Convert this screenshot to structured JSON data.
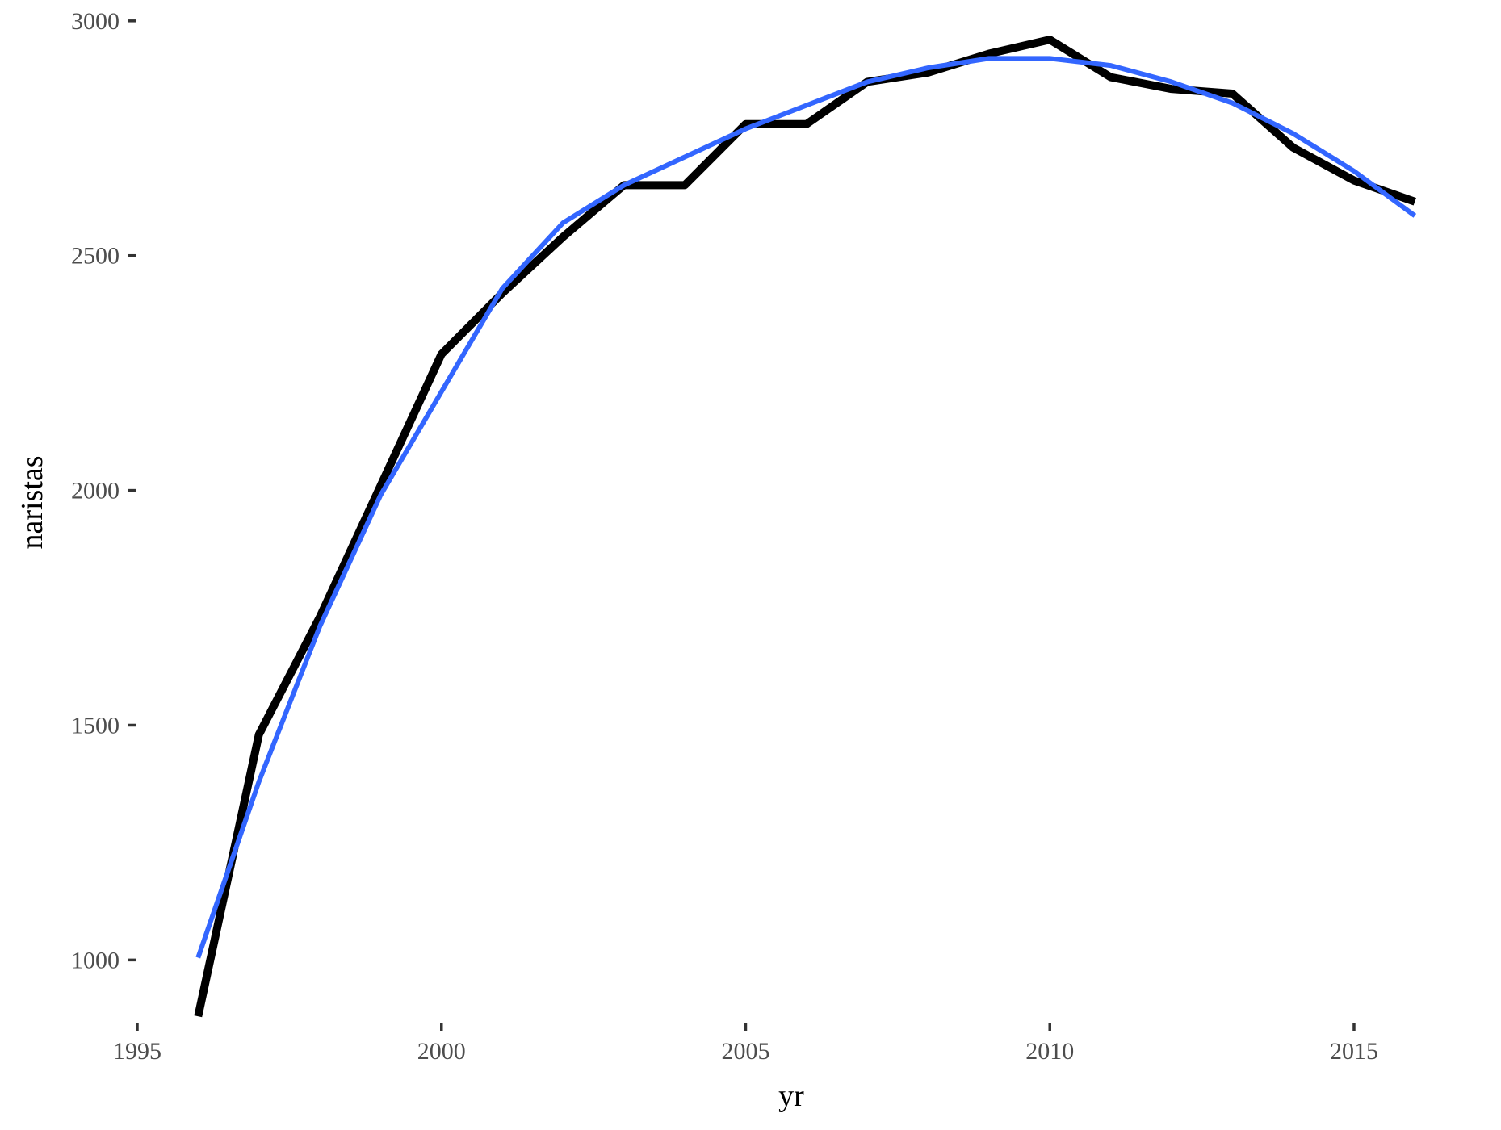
{
  "chart_data": {
    "type": "line",
    "title": "",
    "xlabel": "yr",
    "ylabel": "naristas",
    "xlim": [
      1995,
      2016.5
    ],
    "ylim": [
      870,
      3010
    ],
    "x_ticks": [
      1995,
      2000,
      2005,
      2010,
      2015
    ],
    "x_tick_labels": [
      "1995",
      "2000",
      "2005",
      "2010",
      "2015"
    ],
    "y_ticks": [
      1000,
      1500,
      2000,
      2500,
      3000
    ],
    "y_tick_labels": [
      "1000",
      "1500",
      "2000",
      "2500",
      "3000"
    ],
    "grid": false,
    "legend": "none",
    "series": [
      {
        "style": "observed",
        "color": "#000000",
        "x": [
          1996,
          1997,
          1998,
          1999,
          2000,
          2001,
          2002,
          2003,
          2004,
          2005,
          2006,
          2007,
          2008,
          2009,
          2010,
          2011,
          2012,
          2013,
          2014,
          2015,
          2016
        ],
        "y": [
          880,
          1480,
          1730,
          2010,
          2290,
          2420,
          2540,
          2650,
          2650,
          2780,
          2780,
          2870,
          2890,
          2930,
          2960,
          2880,
          2855,
          2845,
          2730,
          2660,
          2615
        ]
      },
      {
        "style": "smooth",
        "color": "#3366ff",
        "x": [
          1996,
          1997,
          1998,
          1999,
          2000,
          2001,
          2002,
          2003,
          2004,
          2005,
          2006,
          2007,
          2008,
          2009,
          2010,
          2011,
          2012,
          2013,
          2014,
          2015,
          2016
        ],
        "y": [
          1005,
          1380,
          1710,
          1990,
          2210,
          2430,
          2570,
          2650,
          2710,
          2770,
          2820,
          2870,
          2900,
          2920,
          2920,
          2905,
          2870,
          2825,
          2760,
          2680,
          2585
        ]
      }
    ]
  }
}
